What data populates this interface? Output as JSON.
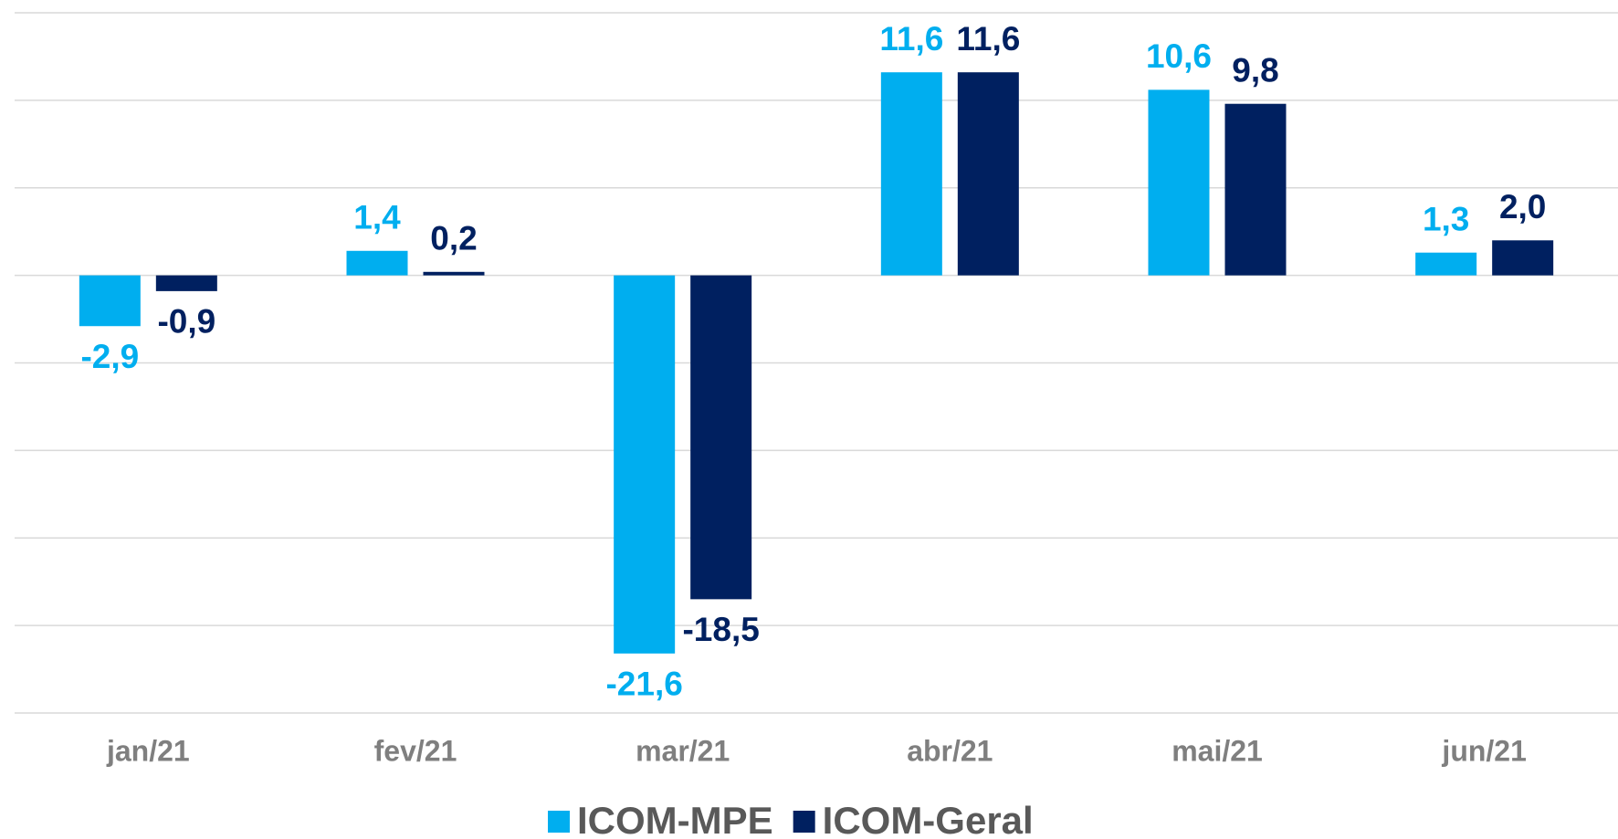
{
  "chart_data": {
    "type": "bar",
    "categories": [
      "jan/21",
      "fev/21",
      "mar/21",
      "abr/21",
      "mai/21",
      "jun/21"
    ],
    "series": [
      {
        "name": "ICOM-MPE",
        "color": "#00aeef",
        "values": [
          -2.9,
          1.4,
          -21.6,
          11.6,
          10.6,
          1.3
        ],
        "value_labels": [
          "-2,9",
          "1,4",
          "-21,6",
          "11,6",
          "10,6",
          "1,3"
        ]
      },
      {
        "name": "ICOM-Geral",
        "color": "#002060",
        "values": [
          -0.9,
          0.2,
          -18.5,
          11.6,
          9.8,
          2.0
        ],
        "value_labels": [
          "-0,9",
          "0,2",
          "-18,5",
          "11,6",
          "9,8",
          "2,0"
        ]
      }
    ],
    "ylim": [
      -25,
      15
    ],
    "yticks": [
      -25,
      -20,
      -15,
      -10,
      -5,
      0,
      5,
      10,
      15
    ],
    "grid": true,
    "legend": "bottom"
  }
}
